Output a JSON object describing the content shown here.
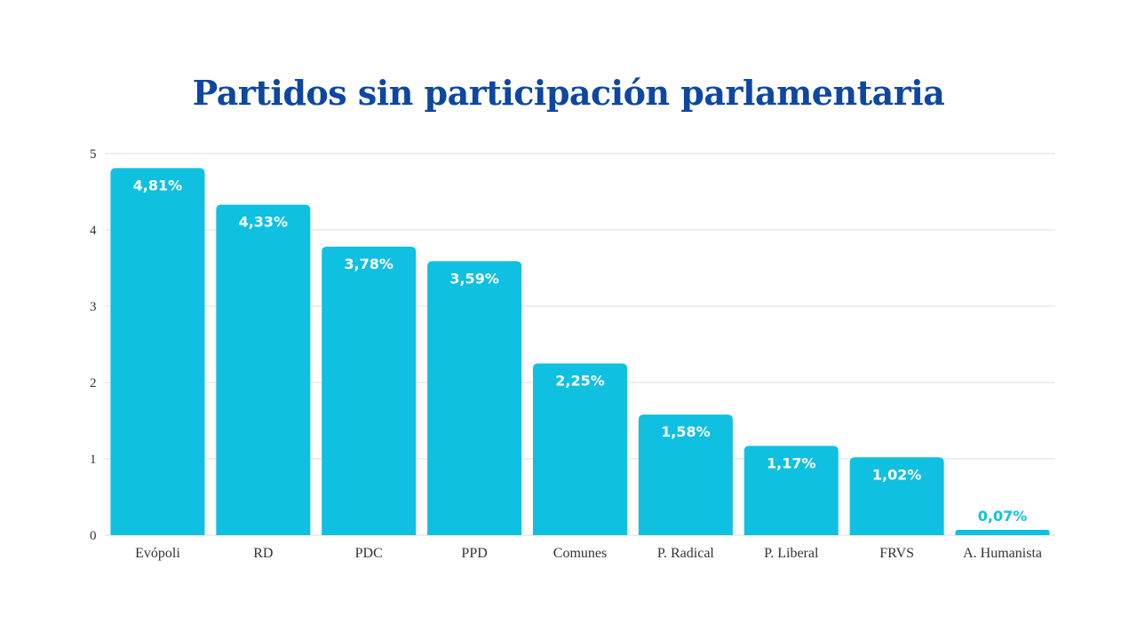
{
  "chart_data": {
    "type": "bar",
    "title": "Partidos sin participación parlamentaria",
    "categories": [
      "Evópoli",
      "RD",
      "PDC",
      "PPD",
      "Comunes",
      "P. Radical",
      "P. Liberal",
      "FRVS",
      "A. Humanista"
    ],
    "values": [
      4.81,
      4.33,
      3.78,
      3.59,
      2.25,
      1.58,
      1.17,
      1.02,
      0.07
    ],
    "data_labels": [
      "4,81%",
      "4,33%",
      "3,78%",
      "3,59%",
      "2,25%",
      "1,58%",
      "1,17%",
      "1,02%",
      "0,07%"
    ],
    "yticks": [
      "0",
      "1",
      "2",
      "3",
      "4",
      "5"
    ],
    "ylim": [
      0,
      5
    ],
    "xlabel": "",
    "ylabel": "",
    "grid": true,
    "legend": "none",
    "colors": {
      "bar": "#0fc0e0",
      "title": "#0d47a1",
      "label_inside": "#ffffff",
      "label_outside": "#0fc0e0",
      "grid": "#dddddd"
    }
  }
}
